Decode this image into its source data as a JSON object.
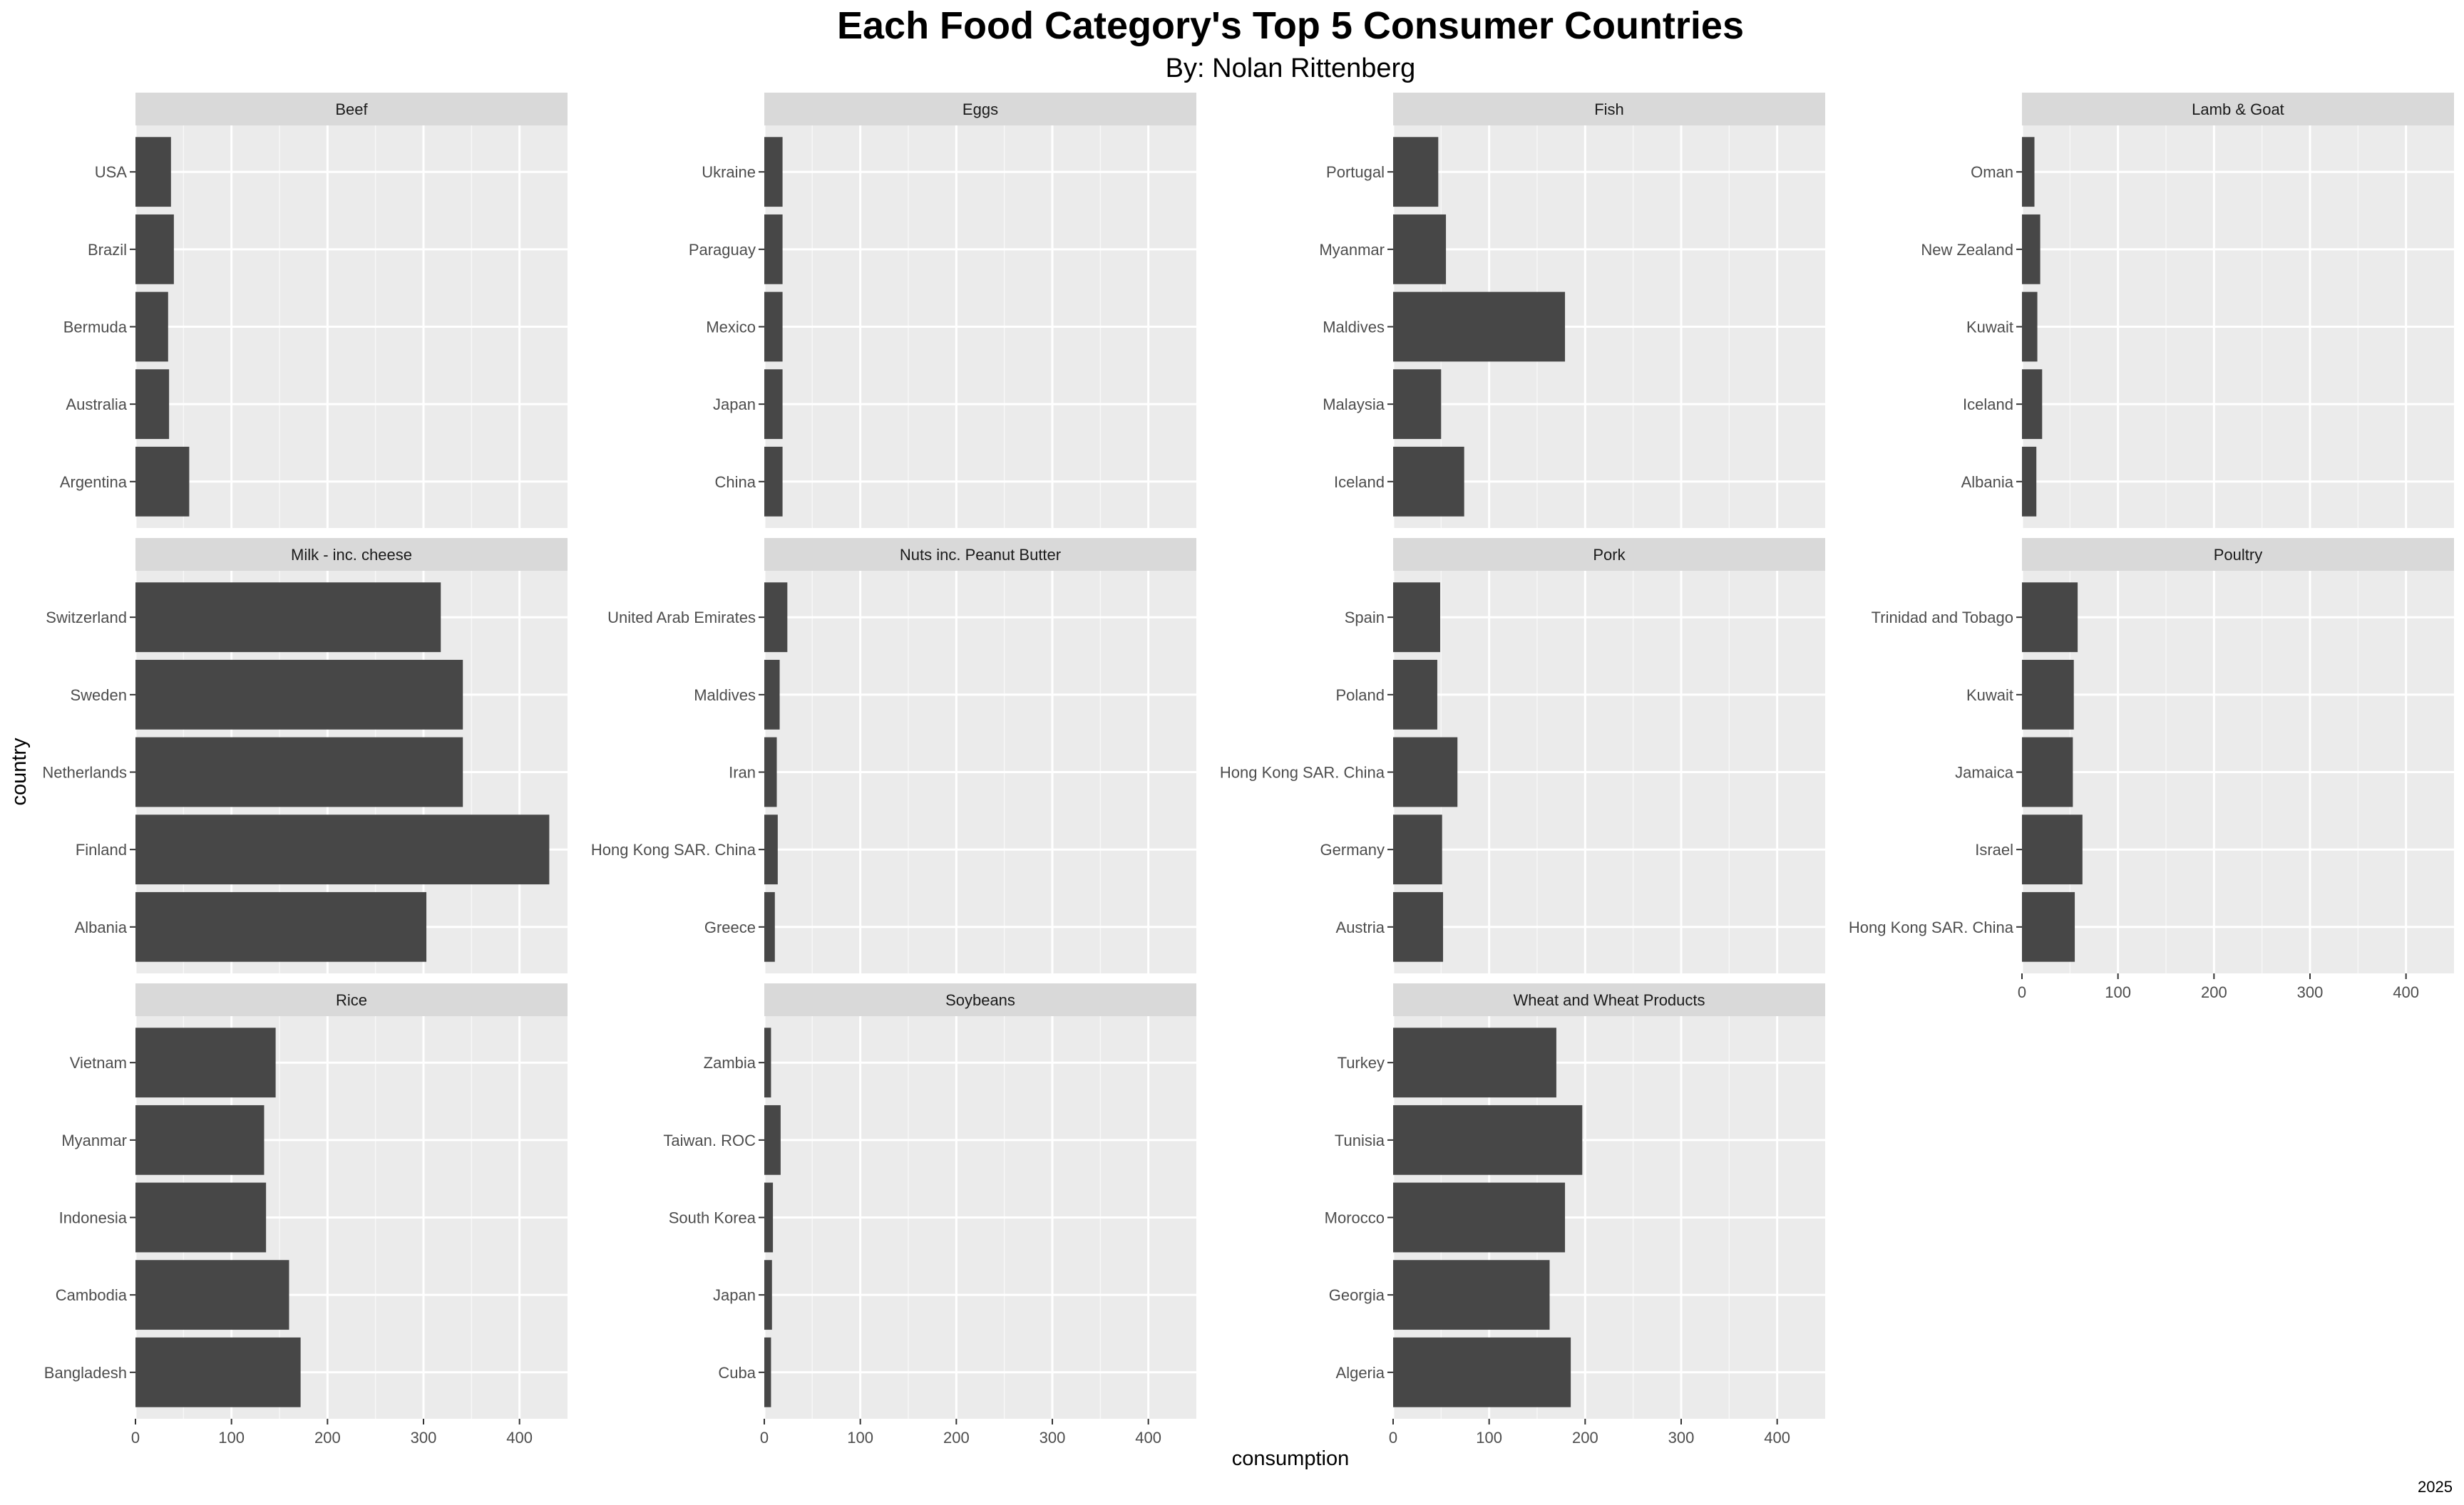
{
  "chart_data": {
    "type": "bar",
    "orientation": "horizontal",
    "title": "Each Food Category's Top 5 Consumer Countries",
    "subtitle": "By: Nolan Rittenberg",
    "xlabel": "consumption",
    "ylabel": "country",
    "caption": "2025",
    "xlim": [
      0,
      450
    ],
    "x_ticks": [
      0,
      100,
      200,
      300,
      400
    ],
    "grid": true,
    "facets": [
      {
        "name": "Beef",
        "categories": [
          "USA",
          "Brazil",
          "Bermuda",
          "Australia",
          "Argentina"
        ],
        "values": [
          37,
          40,
          34,
          35,
          56
        ]
      },
      {
        "name": "Eggs",
        "categories": [
          "Ukraine",
          "Paraguay",
          "Mexico",
          "Japan",
          "China"
        ],
        "values": [
          19,
          19,
          19,
          19,
          19
        ]
      },
      {
        "name": "Fish",
        "categories": [
          "Portugal",
          "Myanmar",
          "Maldives",
          "Malaysia",
          "Iceland"
        ],
        "values": [
          47,
          55,
          179,
          50,
          74
        ]
      },
      {
        "name": "Lamb & Goat",
        "categories": [
          "Oman",
          "New Zealand",
          "Kuwait",
          "Iceland",
          "Albania"
        ],
        "values": [
          13,
          19,
          16,
          21,
          15
        ]
      },
      {
        "name": "Milk - inc. cheese",
        "categories": [
          "Switzerland",
          "Sweden",
          "Netherlands",
          "Finland",
          "Albania"
        ],
        "values": [
          318,
          341,
          341,
          431,
          303
        ]
      },
      {
        "name": "Nuts inc. Peanut Butter",
        "categories": [
          "United Arab Emirates",
          "Maldives",
          "Iran",
          "Hong Kong SAR. China",
          "Greece"
        ],
        "values": [
          24,
          16,
          13,
          14,
          11
        ]
      },
      {
        "name": "Pork",
        "categories": [
          "Spain",
          "Poland",
          "Hong Kong SAR. China",
          "Germany",
          "Austria"
        ],
        "values": [
          49,
          46,
          67,
          51,
          52
        ]
      },
      {
        "name": "Poultry",
        "categories": [
          "Trinidad and Tobago",
          "Kuwait",
          "Jamaica",
          "Israel",
          "Hong Kong SAR. China"
        ],
        "values": [
          58,
          54,
          53,
          63,
          55
        ]
      },
      {
        "name": "Rice",
        "categories": [
          "Vietnam",
          "Myanmar",
          "Indonesia",
          "Cambodia",
          "Bangladesh"
        ],
        "values": [
          146,
          134,
          136,
          160,
          172
        ]
      },
      {
        "name": "Soybeans",
        "categories": [
          "Zambia",
          "Taiwan. ROC",
          "South Korea",
          "Japan",
          "Cuba"
        ],
        "values": [
          7,
          17,
          9,
          8,
          7
        ]
      },
      {
        "name": "Wheat and Wheat Products",
        "categories": [
          "Turkey",
          "Tunisia",
          "Morocco",
          "Georgia",
          "Algeria"
        ],
        "values": [
          170,
          197,
          179,
          163,
          185
        ]
      }
    ],
    "colors": {
      "bar": "#474747",
      "panel": "#ebebeb",
      "strip": "#d9d9d9",
      "grid": "#ffffff",
      "text": "#000000",
      "tick_text": "#4d4d4d"
    }
  }
}
